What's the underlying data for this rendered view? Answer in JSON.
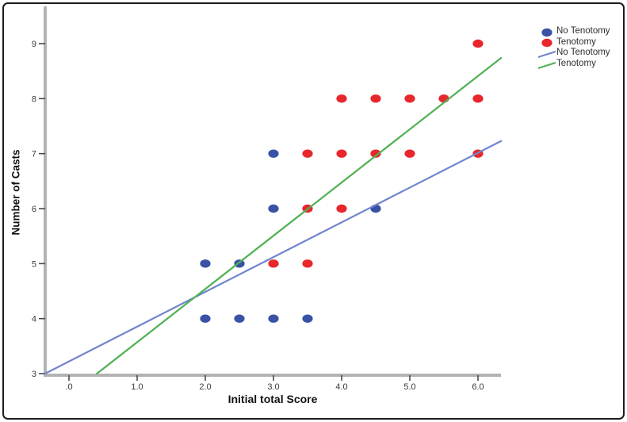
{
  "chart_data": {
    "type": "scatter",
    "title": "",
    "xlabel": "Initial total Score",
    "ylabel": "Number of Casts",
    "xlim": [
      -0.35,
      6.34
    ],
    "ylim": [
      3,
      9.68
    ],
    "grid": false,
    "legend_position": "top-right",
    "xticks": {
      "values": [
        0,
        1,
        2,
        3,
        4,
        5,
        6
      ],
      "labels": [
        ".0",
        "1.0",
        "2.0",
        "3.0",
        "4.0",
        "5.0",
        "6.0"
      ]
    },
    "yticks": {
      "values": [
        3,
        4,
        5,
        6,
        7,
        8,
        9
      ],
      "labels": [
        "3",
        "4",
        "5",
        "6",
        "7",
        "8",
        "9"
      ]
    },
    "series": [
      {
        "name": "No Tenotomy",
        "type": "scatter",
        "color": "#3A52A5",
        "points": [
          [
            2.0,
            4
          ],
          [
            2.5,
            4
          ],
          [
            3.0,
            4
          ],
          [
            3.5,
            4
          ],
          [
            2.0,
            5
          ],
          [
            2.5,
            5
          ],
          [
            3.0,
            6
          ],
          [
            4.5,
            6
          ],
          [
            3.0,
            7
          ]
        ]
      },
      {
        "name": "Tenotomy",
        "type": "scatter",
        "color": "#E8272C",
        "points": [
          [
            3.0,
            5
          ],
          [
            3.5,
            5
          ],
          [
            3.5,
            6
          ],
          [
            4.0,
            6
          ],
          [
            3.5,
            7
          ],
          [
            4.0,
            7
          ],
          [
            4.5,
            7
          ],
          [
            5.0,
            7
          ],
          [
            6.0,
            7
          ],
          [
            4.0,
            8
          ],
          [
            4.5,
            8
          ],
          [
            5.0,
            8
          ],
          [
            5.5,
            8
          ],
          [
            6.0,
            8
          ],
          [
            6.0,
            9
          ]
        ]
      }
    ],
    "fit_lines": [
      {
        "name": "No Tenotomy",
        "color": "#7185CD",
        "from": [
          -0.35,
          3.0
        ],
        "to": [
          6.34,
          7.23
        ]
      },
      {
        "name": "Tenotomy",
        "color": "#4FB153",
        "from": [
          0.41,
          3.0
        ],
        "to": [
          6.34,
          8.74
        ]
      }
    ],
    "legend": [
      {
        "label": "No Tenotomy",
        "marker": "dot",
        "color": "#3A52A5"
      },
      {
        "label": "Tenotomy",
        "marker": "dot",
        "color": "#E8272C"
      },
      {
        "label": "No Tenotomy",
        "marker": "line",
        "color": "#7185CD"
      },
      {
        "label": "Tenotomy",
        "marker": "line",
        "color": "#4FB153"
      }
    ],
    "axis_color": "#b3b3b3",
    "tick_color": "#4a4a4a",
    "tick_label_color": "#3a3a3a"
  }
}
